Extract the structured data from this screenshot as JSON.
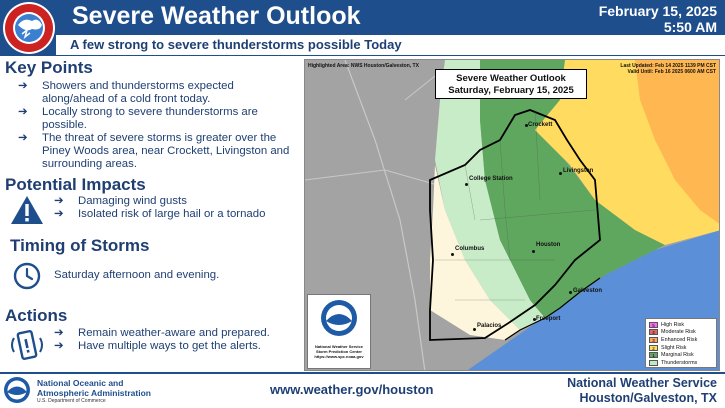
{
  "header": {
    "title": "Severe Weather Outlook",
    "date": "February 15, 2025",
    "time": "5:50 AM",
    "subtitle": "A few strong to severe thunderstorms possible Today",
    "logo_text": "NATIONAL WEATHER SERVICE"
  },
  "key_points": {
    "heading": "Key Points",
    "items": [
      "Showers and thunderstorms expected along/ahead of a cold front today.",
      "Locally strong to severe thunderstorms are possible.",
      "The threat of severe storms is greater over the Piney Woods area, near Crockett, Livingston and surrounding areas."
    ]
  },
  "impacts": {
    "heading": "Potential Impacts",
    "items": [
      "Damaging wind gusts",
      "Isolated risk of large hail or a tornado"
    ],
    "icon": "warning-icon"
  },
  "timing": {
    "heading": "Timing of Storms",
    "text": "Saturday afternoon and evening.",
    "icon": "clock-icon"
  },
  "actions": {
    "heading": "Actions",
    "items": [
      "Remain weather-aware and prepared.",
      "Have multiple ways to get the alerts."
    ],
    "icon": "phone-alert-icon"
  },
  "bullet_arrow": "➔",
  "map": {
    "highlighted_area": "Highlighted Area: NWS Houston/Galveston, TX",
    "last_updated": "Last Updated: Feb 14 2025 1139 PM CST",
    "valid_until": "Valid Until: Feb 16 2025 0600 AM CST",
    "title_line1": "Severe Weather Outlook",
    "title_line2": "Saturday, February 15, 2025",
    "cities": {
      "crockett": "Crockett",
      "livingston": "Livingston",
      "college_station": "College Station",
      "columbus": "Columbus",
      "houston": "Houston",
      "galveston": "Galveston",
      "freeport": "Freeport",
      "palacios": "Palacios"
    },
    "noaa_caption_1": "National Weather Service",
    "noaa_caption_2": "Storm Prediction Center",
    "noaa_caption_3": "https://www.spc.noaa.gov",
    "legend": [
      {
        "num": "5",
        "label": "High Risk",
        "color": "#ff66ff"
      },
      {
        "num": "4",
        "label": "Moderate Risk",
        "color": "#e06666"
      },
      {
        "num": "3",
        "label": "Enhanced Risk",
        "color": "#ffa366"
      },
      {
        "num": "2",
        "label": "Slight Risk",
        "color": "#ffe066"
      },
      {
        "num": "1",
        "label": "Marginal Risk",
        "color": "#66a366"
      },
      {
        "num": "",
        "label": "Thunderstorms",
        "color": "#c1e9c1"
      }
    ]
  },
  "footer": {
    "noaa_line1": "National Oceanic and",
    "noaa_line2": "Atmospheric Administration",
    "noaa_dept": "U.S. Department of Commerce",
    "website": "www.weather.gov/houston",
    "nws_line1": "National Weather Service",
    "nws_line2": "Houston/Galveston, TX"
  },
  "colors": {
    "brand_blue": "#1f4e8c",
    "text_blue": "#1f3f73"
  }
}
